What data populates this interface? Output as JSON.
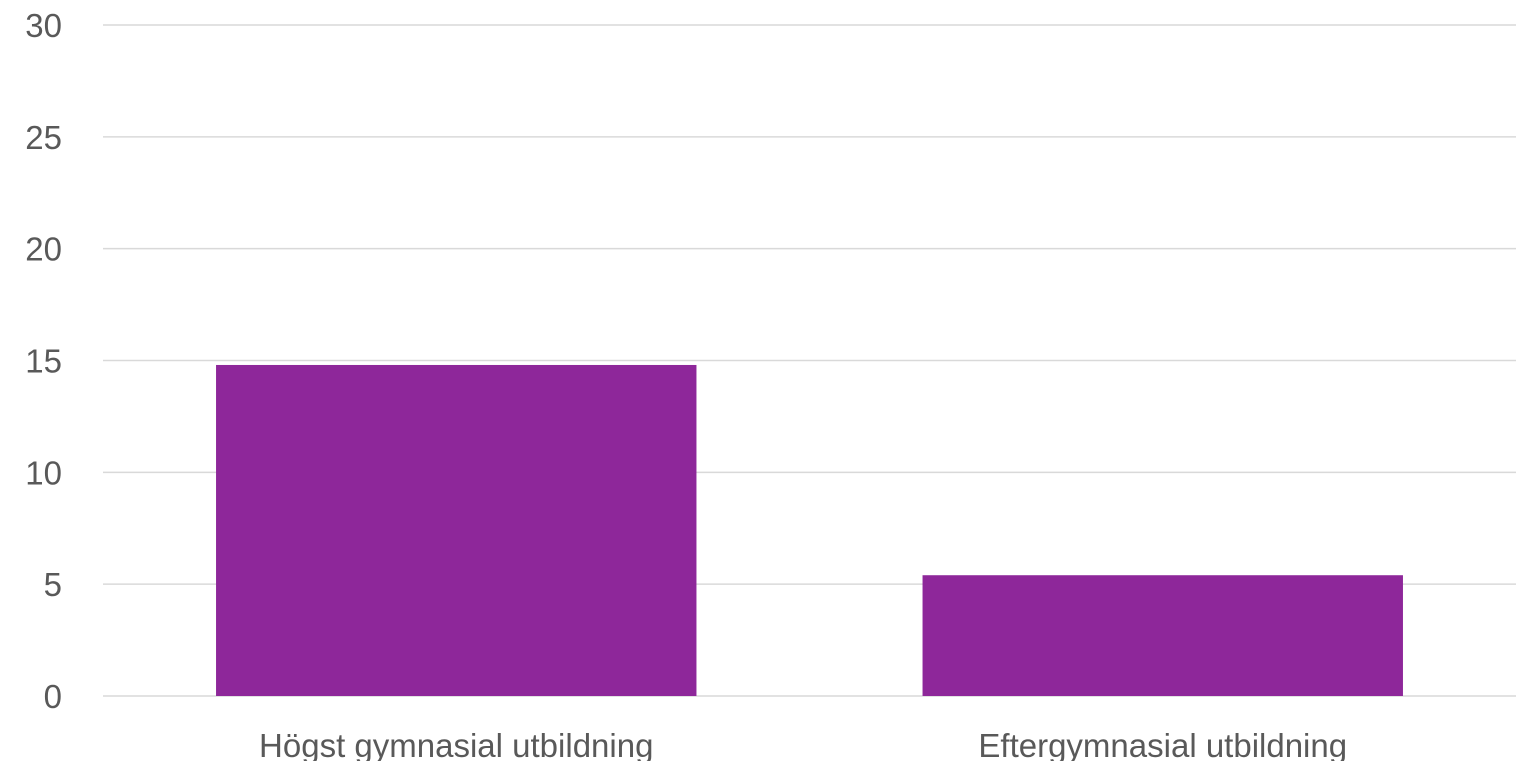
{
  "chart_data": {
    "type": "bar",
    "categories": [
      "Högst gymnasial utbildning",
      "Eftergymnasial utbildning"
    ],
    "values": [
      14.8,
      5.4
    ],
    "title": "",
    "xlabel": "",
    "ylabel": "",
    "ylim": [
      0,
      30
    ],
    "yticks": [
      0,
      5,
      10,
      15,
      20,
      25,
      30
    ],
    "grid": true,
    "legend": "none",
    "bar_color": "#8e279a",
    "grid_color": "#d9d9d9",
    "text_color": "#595959"
  }
}
